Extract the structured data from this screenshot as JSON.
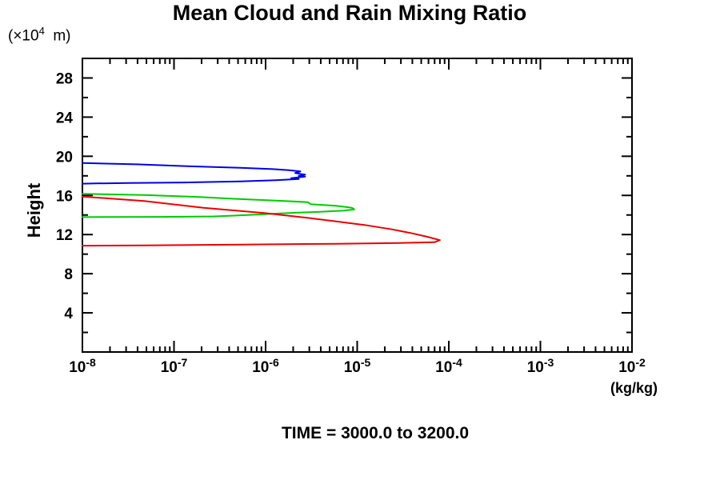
{
  "title": "Mean Cloud and Rain Mixing Ratio",
  "axes": {
    "y_unit_prefix": "(×10",
    "y_unit_exp": "4",
    "y_unit_suffix": "  m)",
    "y_label": "Height",
    "x_unit_label": "(kg/kg)"
  },
  "annotation": "TIME = 3000.0 to 3200.0",
  "chart_data": {
    "type": "line",
    "title": "Mean Cloud and Rain Mixing Ratio",
    "xlabel": "(kg/kg)",
    "ylabel": "Height (×10⁴ m)",
    "x_scale": "log",
    "xlim": [
      1e-08,
      0.01
    ],
    "ylim": [
      0,
      30
    ],
    "x_tick_exponents": [
      -8,
      -7,
      -6,
      -5,
      -4,
      -3,
      -2
    ],
    "x_minor_mantissas": [
      2,
      3,
      4,
      5,
      6,
      7,
      8,
      9
    ],
    "y_major_ticks": [
      4,
      8,
      12,
      16,
      20,
      24,
      28
    ],
    "y_minor_ticks": [
      2,
      6,
      10,
      14,
      18,
      22,
      26
    ],
    "grid": false,
    "legend": "none",
    "annotation": "TIME = 3000.0 to 3200.0",
    "frame_color": "#000000",
    "series": [
      {
        "name": "blue-upper-cloud-profile",
        "color": "#0000ee",
        "points": [
          [
            1e-08,
            19.31
          ],
          [
            3.9e-08,
            19.18
          ],
          [
            1.4e-07,
            18.98
          ],
          [
            5.3e-07,
            18.82
          ],
          [
            1.2e-06,
            18.69
          ],
          [
            1.8e-06,
            18.57
          ],
          [
            2.4e-06,
            18.45
          ],
          [
            2.1e-06,
            18.29
          ],
          [
            2.7e-06,
            18.12
          ],
          [
            2.3e-06,
            18.0
          ],
          [
            2.7e-06,
            17.92
          ],
          [
            1.9e-06,
            17.76
          ],
          [
            2.3e-06,
            17.67
          ],
          [
            1.3e-06,
            17.55
          ],
          [
            5.3e-07,
            17.43
          ],
          [
            1.3e-07,
            17.32
          ],
          [
            3.2e-08,
            17.27
          ],
          [
            1.4e-08,
            17.22
          ],
          [
            1e-08,
            17.2
          ]
        ]
      },
      {
        "name": "green-mid-cloud-profile",
        "color": "#00cc00",
        "points": [
          [
            1e-08,
            16.16
          ],
          [
            4.7e-08,
            16.04
          ],
          [
            1.9e-07,
            15.84
          ],
          [
            4.1e-07,
            15.67
          ],
          [
            6.4e-07,
            15.59
          ],
          [
            1.3e-06,
            15.47
          ],
          [
            2.9e-06,
            15.31
          ],
          [
            3.1e-06,
            15.1
          ],
          [
            5.9e-06,
            14.94
          ],
          [
            8.8e-06,
            14.73
          ],
          [
            9.3e-06,
            14.57
          ],
          [
            7.2e-06,
            14.45
          ],
          [
            3.9e-06,
            14.33
          ],
          [
            1.6e-06,
            14.18
          ],
          [
            7.9e-07,
            14.04
          ],
          [
            4.3e-07,
            13.93
          ],
          [
            2.6e-07,
            13.85
          ],
          [
            7e-08,
            13.81
          ],
          [
            2.1e-08,
            13.8
          ],
          [
            1e-08,
            13.78
          ]
        ]
      },
      {
        "name": "red-rain-profile",
        "color": "#ee0000",
        "points": [
          [
            1e-08,
            15.88
          ],
          [
            4.7e-08,
            15.43
          ],
          [
            2.1e-07,
            14.73
          ],
          [
            9.6e-07,
            14.2
          ],
          [
            2.6e-06,
            13.76
          ],
          [
            5.9e-06,
            13.35
          ],
          [
            1.2e-05,
            12.98
          ],
          [
            2.4e-05,
            12.53
          ],
          [
            4e-05,
            12.12
          ],
          [
            5.9e-05,
            11.76
          ],
          [
            8e-05,
            11.43
          ],
          [
            7e-05,
            11.22
          ],
          [
            2.9e-05,
            11.14
          ],
          [
            5.9e-06,
            11.06
          ],
          [
            5.3e-07,
            10.98
          ],
          [
            4.7e-08,
            10.9
          ],
          [
            1e-08,
            10.86
          ]
        ]
      }
    ]
  }
}
